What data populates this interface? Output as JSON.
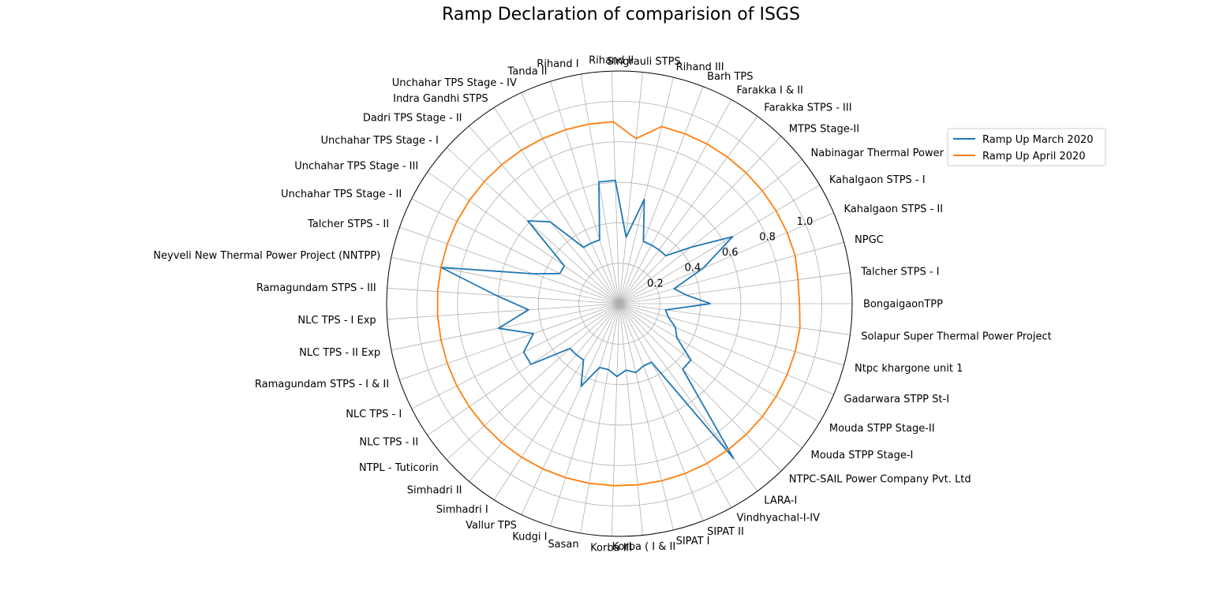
{
  "chart_data": {
    "type": "radar",
    "title": "Ramp Declaration of comparision of ISGS",
    "categories": [
      "BongaigaonTPP",
      "Talcher STPS - I",
      "NPGC",
      "Kahalgaon STPS - II",
      "Kahalgaon STPS - I",
      "Nabinagar Thermal Power Project (BRBCL)",
      "MTPS Stage-II",
      "Farakka STPS - III",
      "Farakka I & II",
      "Barh TPS",
      "Rihand III",
      "Singrauli STPS",
      "Rihand II",
      "Rihand I",
      "Tanda II",
      "Unchahar TPS Stage - IV",
      "Indra Gandhi STPS",
      "Dadri TPS Stage - II",
      "Unchahar TPS Stage - I",
      "Unchahar TPS Stage - III",
      "Unchahar TPS Stage - II",
      "Talcher STPS - II",
      "Neyveli New Thermal Power Project (NNTPP)",
      "Ramagundam STPS - III",
      "NLC TPS - I Exp",
      "NLC TPS - II Exp",
      "Ramagundam STPS - I & II",
      "NLC TPS - I",
      "NLC TPS - II",
      "NTPL - Tuticorin",
      "Simhadri  II",
      "Simhadri I",
      "Vallur TPS",
      "Kudgi I",
      "Sasan",
      "Korba III",
      "Korba ( I & II",
      "SIPAT I",
      "SIPAT II",
      "Vindhyachal-I-IV",
      "LARA-I",
      "NTPC-SAIL Power Company Pvt. Ltd",
      "Mouda STPP Stage-I",
      "Mouda STPP Stage-II",
      "Gadarwara STPP St-I",
      "Ntpc khargone unit 1",
      "Solapur Super Thermal Power Project"
    ],
    "series": [
      {
        "name": "Ramp Up March 2020",
        "color": "#1f77b4",
        "values": [
          0.45,
          0.33,
          0.28,
          0.45,
          0.65,
          0.45,
          0.33,
          0.33,
          0.33,
          0.33,
          0.53,
          0.33,
          0.61,
          0.61,
          0.33,
          0.33,
          0.33,
          0.53,
          0.61,
          0.33,
          0.33,
          0.45,
          0.9,
          0.61,
          0.45,
          0.61,
          0.45,
          0.53,
          0.53,
          0.33,
          0.33,
          0.33,
          0.45,
          0.33,
          0.33,
          0.36,
          0.33,
          0.35,
          0.33,
          0.33,
          0.95,
          0.45,
          0.45,
          0.33,
          0.3,
          0.25,
          0.23
        ]
      },
      {
        "name": "Ramp Up April 2020",
        "color": "#ff7f0e",
        "values": [
          0.89,
          0.89,
          0.9,
          0.9,
          0.9,
          0.9,
          0.9,
          0.9,
          0.9,
          0.9,
          0.9,
          0.82,
          0.9,
          0.9,
          0.9,
          0.9,
          0.9,
          0.9,
          0.9,
          0.9,
          0.9,
          0.9,
          0.9,
          0.9,
          0.9,
          0.9,
          0.9,
          0.9,
          0.9,
          0.9,
          0.9,
          0.9,
          0.9,
          0.9,
          0.9,
          0.9,
          0.9,
          0.9,
          0.9,
          0.9,
          0.9,
          0.9,
          0.9,
          0.9,
          0.9,
          0.9,
          0.9
        ]
      }
    ],
    "rticks": [
      "0.2",
      "0.4",
      "0.6",
      "0.8",
      "1.0"
    ],
    "rlim": [
      0,
      1.15
    ],
    "grid": true,
    "legend_position": "upper-right"
  }
}
